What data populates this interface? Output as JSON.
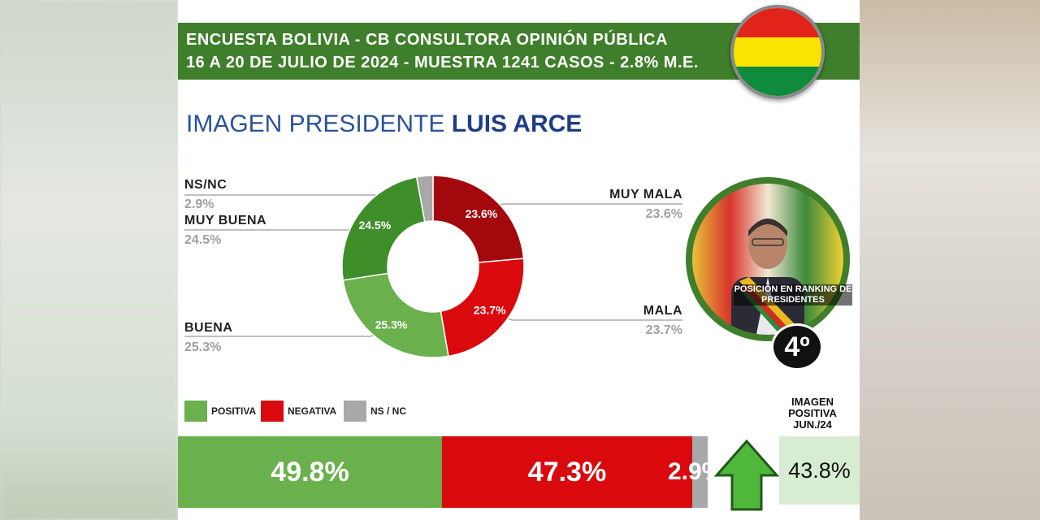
{
  "header": {
    "line1": "ENCUESTA BOLIVIA - CB CONSULTORA OPINIÓN PÚBLICA",
    "line2": "16 A 20 DE JULIO DE 2024 - MUESTRA 1241 CASOS - 2.8% M.E."
  },
  "title": {
    "prefix": "IMAGEN PRESIDENTE ",
    "name": "LUIS ARCE"
  },
  "colors": {
    "header_green": "#3f7f2b",
    "muy_mala": "#a3080c",
    "mala": "#d9090e",
    "buena": "#6ab04c",
    "muy_buena": "#3e8e2a",
    "nsnc": "#a8a8a8",
    "title_blue": "#2a5298"
  },
  "chart_data": {
    "type": "pie",
    "subtype": "donut",
    "slices": [
      {
        "label": "MUY MALA",
        "value": 23.6,
        "display": "23.6%"
      },
      {
        "label": "MALA",
        "value": 23.7,
        "display": "23.7%"
      },
      {
        "label": "BUENA",
        "value": 25.3,
        "display": "25.3%"
      },
      {
        "label": "MUY BUENA",
        "value": 24.5,
        "display": "24.5%"
      },
      {
        "label": "NS/NC",
        "value": 2.9,
        "display": "2.9%"
      }
    ],
    "legend": [
      {
        "label": "POSITIVA"
      },
      {
        "label": "NEGATIVA"
      },
      {
        "label": "NS / NC"
      }
    ],
    "summary_bar": [
      {
        "label": "POSITIVA",
        "value": 49.8,
        "display": "49.8%"
      },
      {
        "label": "NEGATIVA",
        "value": 47.3,
        "display": "47.3%"
      },
      {
        "label": "NS / NC",
        "value": 2.9,
        "display": "2.9%"
      }
    ]
  },
  "ranking": {
    "caption": "POSICIÓN EN RANKING DE PRESIDENTES",
    "position": "4º"
  },
  "previous": {
    "title": "IMAGEN POSITIVA JUN./24",
    "value": "43.8%",
    "trend": "up-arrow-icon"
  }
}
